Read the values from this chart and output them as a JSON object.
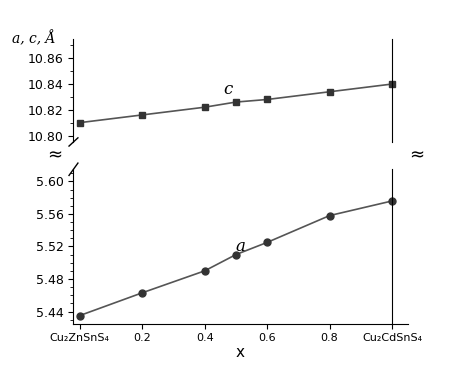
{
  "title": "a, c, Å",
  "xlabel": "x",
  "x_data": [
    0,
    0.2,
    0.4,
    0.5,
    0.6,
    0.8,
    1.0
  ],
  "c_data": [
    10.81,
    10.816,
    10.822,
    10.826,
    10.828,
    10.834,
    10.84
  ],
  "a_data": [
    5.435,
    5.463,
    5.49,
    5.51,
    5.525,
    5.558,
    5.576
  ],
  "c_label": "c",
  "a_label": "a",
  "c_yticks": [
    10.8,
    10.82,
    10.84,
    10.86
  ],
  "a_yticks": [
    5.44,
    5.48,
    5.52,
    5.56,
    5.6
  ],
  "c_ylim": [
    10.795,
    10.875
  ],
  "a_ylim": [
    5.425,
    5.615
  ],
  "xticks": [
    0,
    0.2,
    0.4,
    0.6,
    0.8,
    1.0
  ],
  "xticklabels": [
    "Cu₂ZnSnS₄",
    "0.2",
    "0.4",
    "0.6",
    "0.8",
    "Cu₂CdSnS₄"
  ],
  "line_color": "#555555",
  "marker_color": "#333333",
  "background_color": "#ffffff",
  "approx_symbol": "≈"
}
